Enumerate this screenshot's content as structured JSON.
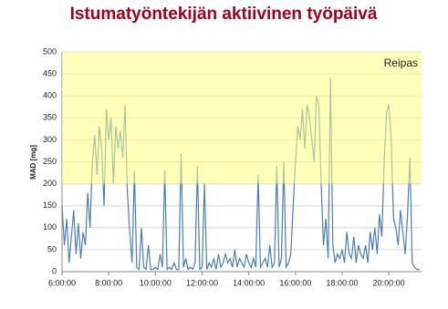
{
  "chart_data": {
    "type": "line",
    "title": "Istumatyöntekijän aktiivinen työpäivä",
    "y_label": "MAD [mg]",
    "zone": {
      "from": 200,
      "to": 500,
      "label": "Reipas",
      "color": "#ffff80"
    },
    "grid": true,
    "xlim": [
      6,
      21.4
    ],
    "ylim": [
      0,
      500
    ],
    "yticks": [
      0,
      50,
      100,
      150,
      200,
      250,
      300,
      350,
      400,
      450,
      500
    ],
    "xticks": [
      {
        "value": 6,
        "label": "6:00:00"
      },
      {
        "value": 8,
        "label": "8:00:00"
      },
      {
        "value": 10,
        "label": "10:00:00"
      },
      {
        "value": 12,
        "label": "12:00:00"
      },
      {
        "value": 14,
        "label": "14:00:00"
      },
      {
        "value": 16,
        "label": "16:00:00"
      },
      {
        "value": 18,
        "label": "18:00:00"
      },
      {
        "value": 20,
        "label": "20:00:00"
      }
    ],
    "x": [
      6,
      6.1,
      6.2,
      6.3,
      6.4,
      6.5,
      6.6,
      6.7,
      6.8,
      6.9,
      7,
      7.1,
      7.2,
      7.3,
      7.4,
      7.5,
      7.6,
      7.7,
      7.8,
      7.9,
      8,
      8.1,
      8.2,
      8.3,
      8.4,
      8.5,
      8.6,
      8.7,
      8.8,
      8.9,
      9,
      9.1,
      9.2,
      9.3,
      9.4,
      9.5,
      9.6,
      9.7,
      9.8,
      9.9,
      10,
      10.1,
      10.2,
      10.3,
      10.4,
      10.5,
      10.6,
      10.7,
      10.8,
      10.9,
      11,
      11.1,
      11.2,
      11.3,
      11.4,
      11.5,
      11.6,
      11.7,
      11.8,
      11.9,
      12,
      12.1,
      12.2,
      12.3,
      12.4,
      12.5,
      12.6,
      12.7,
      12.8,
      12.9,
      13,
      13.1,
      13.2,
      13.3,
      13.4,
      13.5,
      13.6,
      13.7,
      13.8,
      13.9,
      14,
      14.1,
      14.2,
      14.3,
      14.4,
      14.5,
      14.6,
      14.7,
      14.8,
      14.9,
      15,
      15.1,
      15.2,
      15.3,
      15.4,
      15.5,
      15.6,
      15.7,
      15.8,
      15.9,
      16,
      16.1,
      16.2,
      16.3,
      16.4,
      16.5,
      16.6,
      16.7,
      16.8,
      16.9,
      17,
      17.1,
      17.2,
      17.3,
      17.4,
      17.5,
      17.6,
      17.7,
      17.8,
      17.9,
      18,
      18.1,
      18.2,
      18.3,
      18.4,
      18.5,
      18.6,
      18.7,
      18.8,
      18.9,
      19,
      19.1,
      19.2,
      19.3,
      19.4,
      19.5,
      19.6,
      19.7,
      19.8,
      19.9,
      20,
      20.1,
      20.2,
      20.3,
      20.4,
      20.5,
      20.6,
      20.7,
      20.8,
      20.9,
      21,
      21.1,
      21.2,
      21.3
    ],
    "series": [
      {
        "name": "MAD",
        "color": "#4a7ebb",
        "values": [
          150,
          60,
          120,
          20,
          80,
          140,
          40,
          110,
          30,
          90,
          60,
          180,
          100,
          250,
          310,
          220,
          330,
          280,
          150,
          370,
          300,
          350,
          200,
          330,
          280,
          320,
          260,
          380,
          180,
          90,
          20,
          230,
          10,
          5,
          100,
          10,
          5,
          60,
          5,
          5,
          10,
          5,
          40,
          10,
          230,
          5,
          10,
          5,
          20,
          5,
          5,
          270,
          10,
          30,
          5,
          10,
          5,
          20,
          240,
          5,
          10,
          200,
          5,
          20,
          10,
          30,
          5,
          40,
          10,
          20,
          40,
          20,
          30,
          10,
          50,
          10,
          30,
          20,
          10,
          40,
          20,
          10,
          30,
          10,
          220,
          10,
          20,
          30,
          10,
          60,
          10,
          20,
          240,
          10,
          30,
          250,
          10,
          20,
          40,
          150,
          250,
          330,
          300,
          370,
          280,
          380,
          350,
          300,
          250,
          400,
          380,
          200,
          60,
          120,
          30,
          440,
          60,
          20,
          40,
          30,
          50,
          20,
          90,
          40,
          30,
          80,
          20,
          60,
          40,
          30,
          60,
          20,
          90,
          50,
          100,
          40,
          130,
          80,
          250,
          360,
          380,
          300,
          120,
          100,
          60,
          140,
          90,
          40,
          130,
          260,
          20,
          10,
          5,
          5
        ]
      }
    ]
  }
}
